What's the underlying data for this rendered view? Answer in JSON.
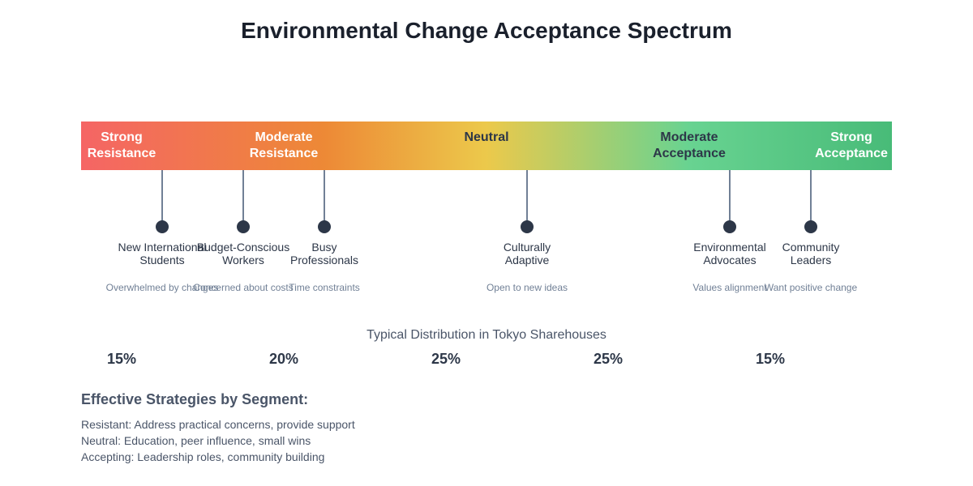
{
  "title": "Environmental Change Acceptance Spectrum",
  "spectrum": {
    "colors": [
      "#f56565",
      "#ed8936",
      "#ecc94b",
      "#68d391",
      "#48bb78"
    ],
    "zones": [
      {
        "line1": "Strong",
        "line2": "Resistance",
        "color": "#ffffff"
      },
      {
        "line1": "Moderate",
        "line2": "Resistance",
        "color": "#ffffff"
      },
      {
        "line1": "Neutral",
        "line2": "",
        "color": "#2d3748"
      },
      {
        "line1": "Moderate",
        "line2": "Acceptance",
        "color": "#2d3748"
      },
      {
        "line1": "Strong",
        "line2": "Acceptance",
        "color": "#ffffff"
      }
    ]
  },
  "segments": [
    {
      "line1": "New International",
      "line2": "Students",
      "desc": "Overwhelmed by changes"
    },
    {
      "line1": "Budget-Conscious",
      "line2": "Workers",
      "desc": "Concerned about costs"
    },
    {
      "line1": "Busy",
      "line2": "Professionals",
      "desc": "Time constraints"
    },
    {
      "line1": "Culturally",
      "line2": "Adaptive",
      "desc": "Open to new ideas"
    },
    {
      "line1": "Environmental",
      "line2": "Advocates",
      "desc": "Values alignment"
    },
    {
      "line1": "Community",
      "line2": "Leaders",
      "desc": "Want positive change"
    }
  ],
  "distribution": {
    "title": "Typical Distribution in Tokyo Sharehouses",
    "values": [
      "15%",
      "20%",
      "25%",
      "25%",
      "15%"
    ]
  },
  "strategies": {
    "title": "Effective Strategies by Segment:",
    "items": [
      "Resistant: Address practical concerns, provide support",
      "Neutral: Education, peer influence, small wins",
      "Accepting: Leadership roles, community building"
    ]
  }
}
